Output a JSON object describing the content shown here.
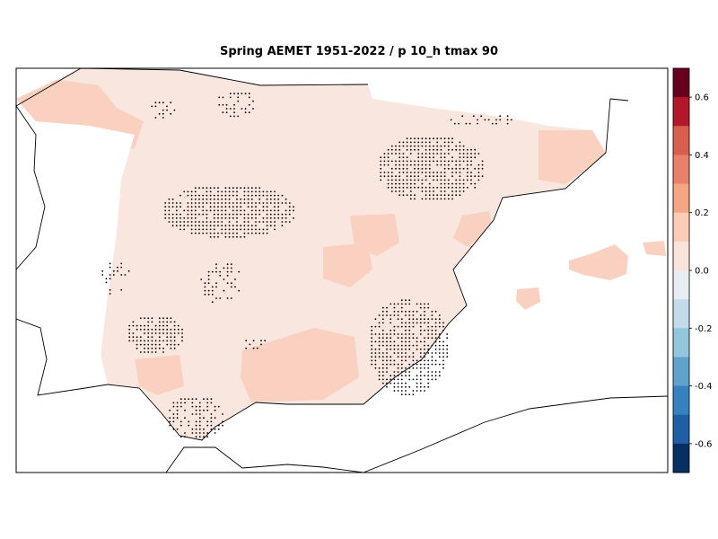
{
  "title": "Spring AEMET 1951-2022 / p 10_h tmax 90",
  "colorbar": {
    "ticks": [
      "0.6",
      "0.4",
      "0.2",
      "0.0",
      "-0.2",
      "-0.4",
      "-0.6"
    ],
    "colors": [
      "#67001f",
      "#b2182b",
      "#d6604d",
      "#e8806a",
      "#f4a582",
      "#fbcdb6",
      "#f9e3da",
      "#e8edf1",
      "#c3dcea",
      "#92c5de",
      "#5fa3cb",
      "#3582bf",
      "#1f5fa6",
      "#053061"
    ]
  },
  "field": {
    "background_value_color": "#f9e6df",
    "warm_patch_color": "#fad1c0",
    "stipple_color": "#000000"
  }
}
